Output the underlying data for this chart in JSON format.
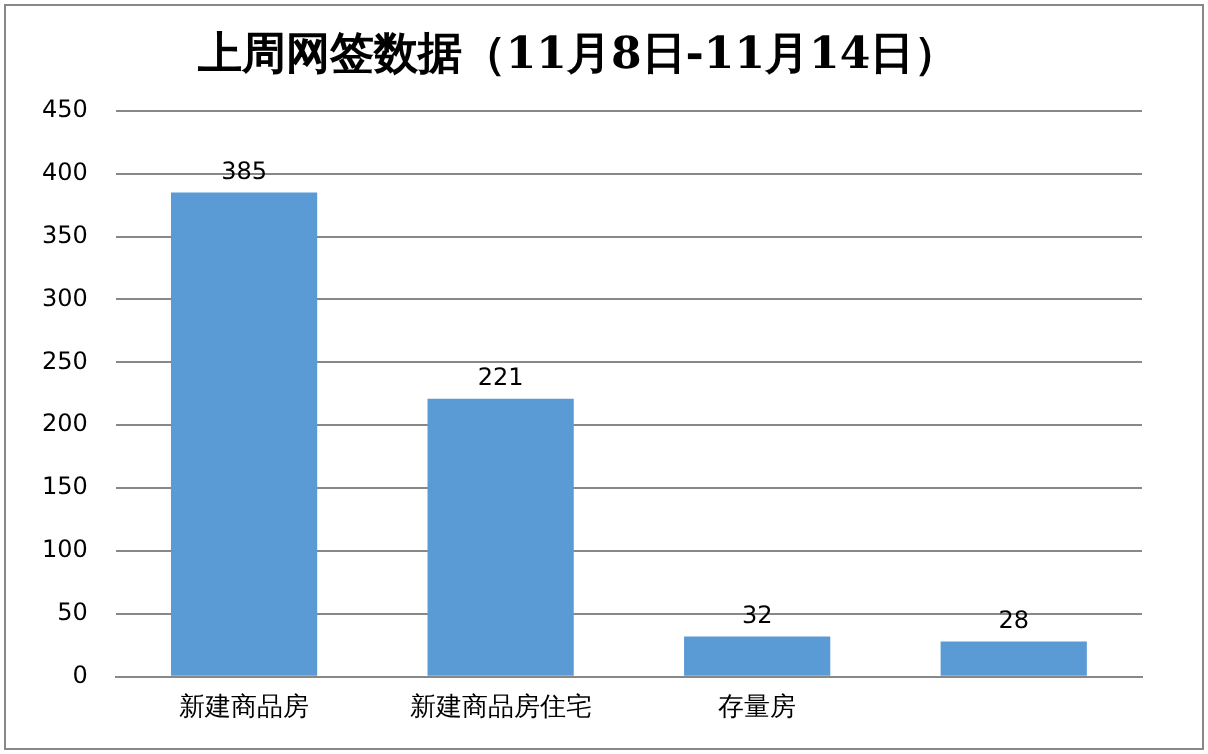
{
  "chart_data": {
    "type": "bar",
    "title": "上周网签数据（11月8日-11月14日）",
    "categories": [
      "新建商品房",
      "新建商品房住宅",
      "存量房",
      null
    ],
    "values": [
      385,
      221,
      32,
      28
    ],
    "color": "#5b9bd5",
    "ylim": [
      0,
      450
    ],
    "yticks": [
      0,
      50,
      100,
      150,
      200,
      250,
      300,
      350,
      400,
      450
    ],
    "grid": "y",
    "data_labels": true,
    "legend": false
  }
}
